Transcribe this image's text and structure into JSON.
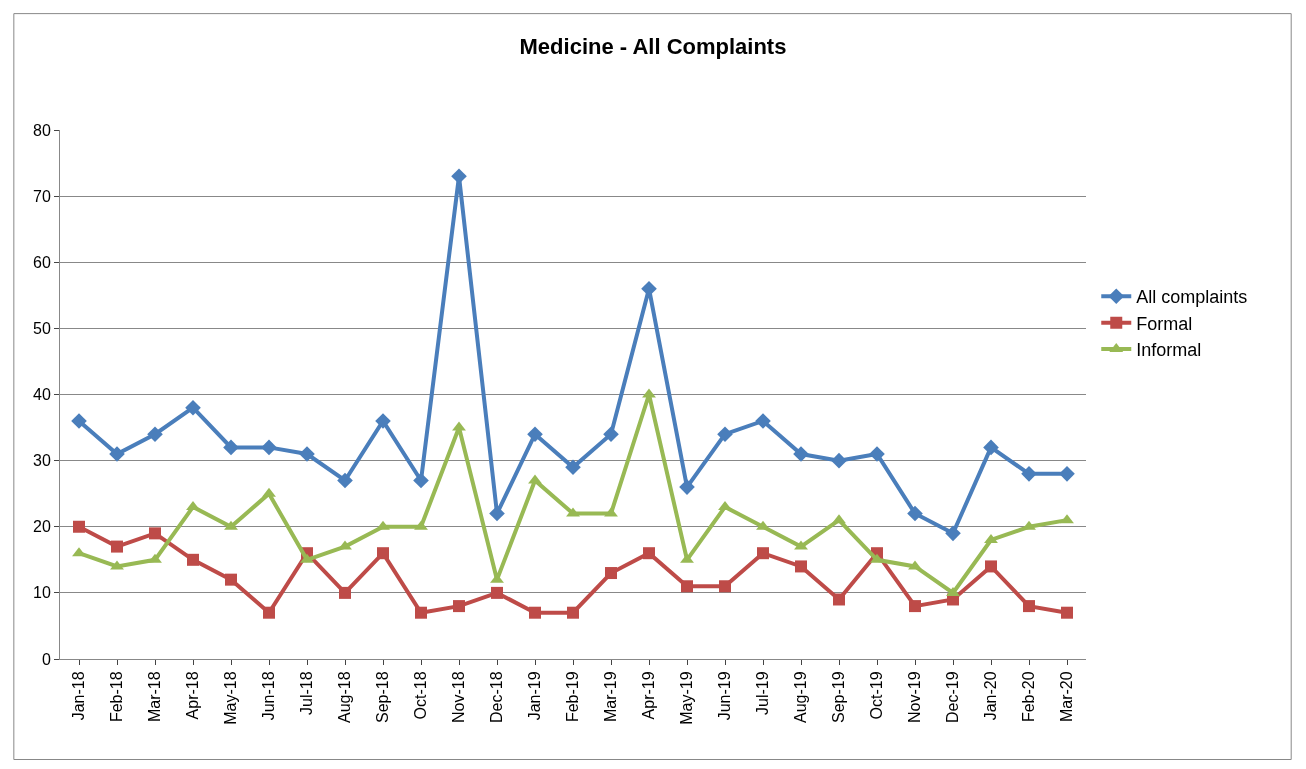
{
  "chart_data": {
    "type": "line",
    "title": "Medicine - All Complaints",
    "categories": [
      "Jan-18",
      "Feb-18",
      "Mar-18",
      "Apr-18",
      "May-18",
      "Jun-18",
      "Jul-18",
      "Aug-18",
      "Sep-18",
      "Oct-18",
      "Nov-18",
      "Dec-18",
      "Jan-19",
      "Feb-19",
      "Mar-19",
      "Apr-19",
      "May-19",
      "Jun-19",
      "Jul-19",
      "Aug-19",
      "Sep-19",
      "Oct-19",
      "Nov-19",
      "Dec-19",
      "Jan-20",
      "Feb-20",
      "Mar-20"
    ],
    "series": [
      {
        "name": "All complaints",
        "color": "#4a7ebb",
        "marker": "diamond",
        "values": [
          36,
          31,
          34,
          38,
          32,
          32,
          31,
          27,
          36,
          27,
          73,
          22,
          34,
          29,
          34,
          56,
          26,
          34,
          36,
          31,
          30,
          31,
          22,
          19,
          32,
          28,
          28
        ]
      },
      {
        "name": "Formal",
        "color": "#be4b48",
        "marker": "square",
        "values": [
          20,
          17,
          19,
          15,
          12,
          7,
          16,
          10,
          16,
          7,
          8,
          10,
          7,
          7,
          13,
          16,
          11,
          11,
          16,
          14,
          9,
          16,
          8,
          9,
          14,
          8,
          7
        ]
      },
      {
        "name": "Informal",
        "color": "#98b954",
        "marker": "triangle",
        "values": [
          16,
          14,
          15,
          23,
          20,
          25,
          15,
          17,
          20,
          20,
          35,
          12,
          27,
          22,
          22,
          40,
          15,
          23,
          20,
          17,
          21,
          15,
          14,
          10,
          18,
          20,
          21
        ]
      }
    ],
    "ylim": [
      0,
      80
    ],
    "yticks": [
      0,
      10,
      20,
      30,
      40,
      50,
      60,
      70,
      80
    ],
    "grid": "y",
    "legend": "right",
    "line_style": "solid"
  }
}
